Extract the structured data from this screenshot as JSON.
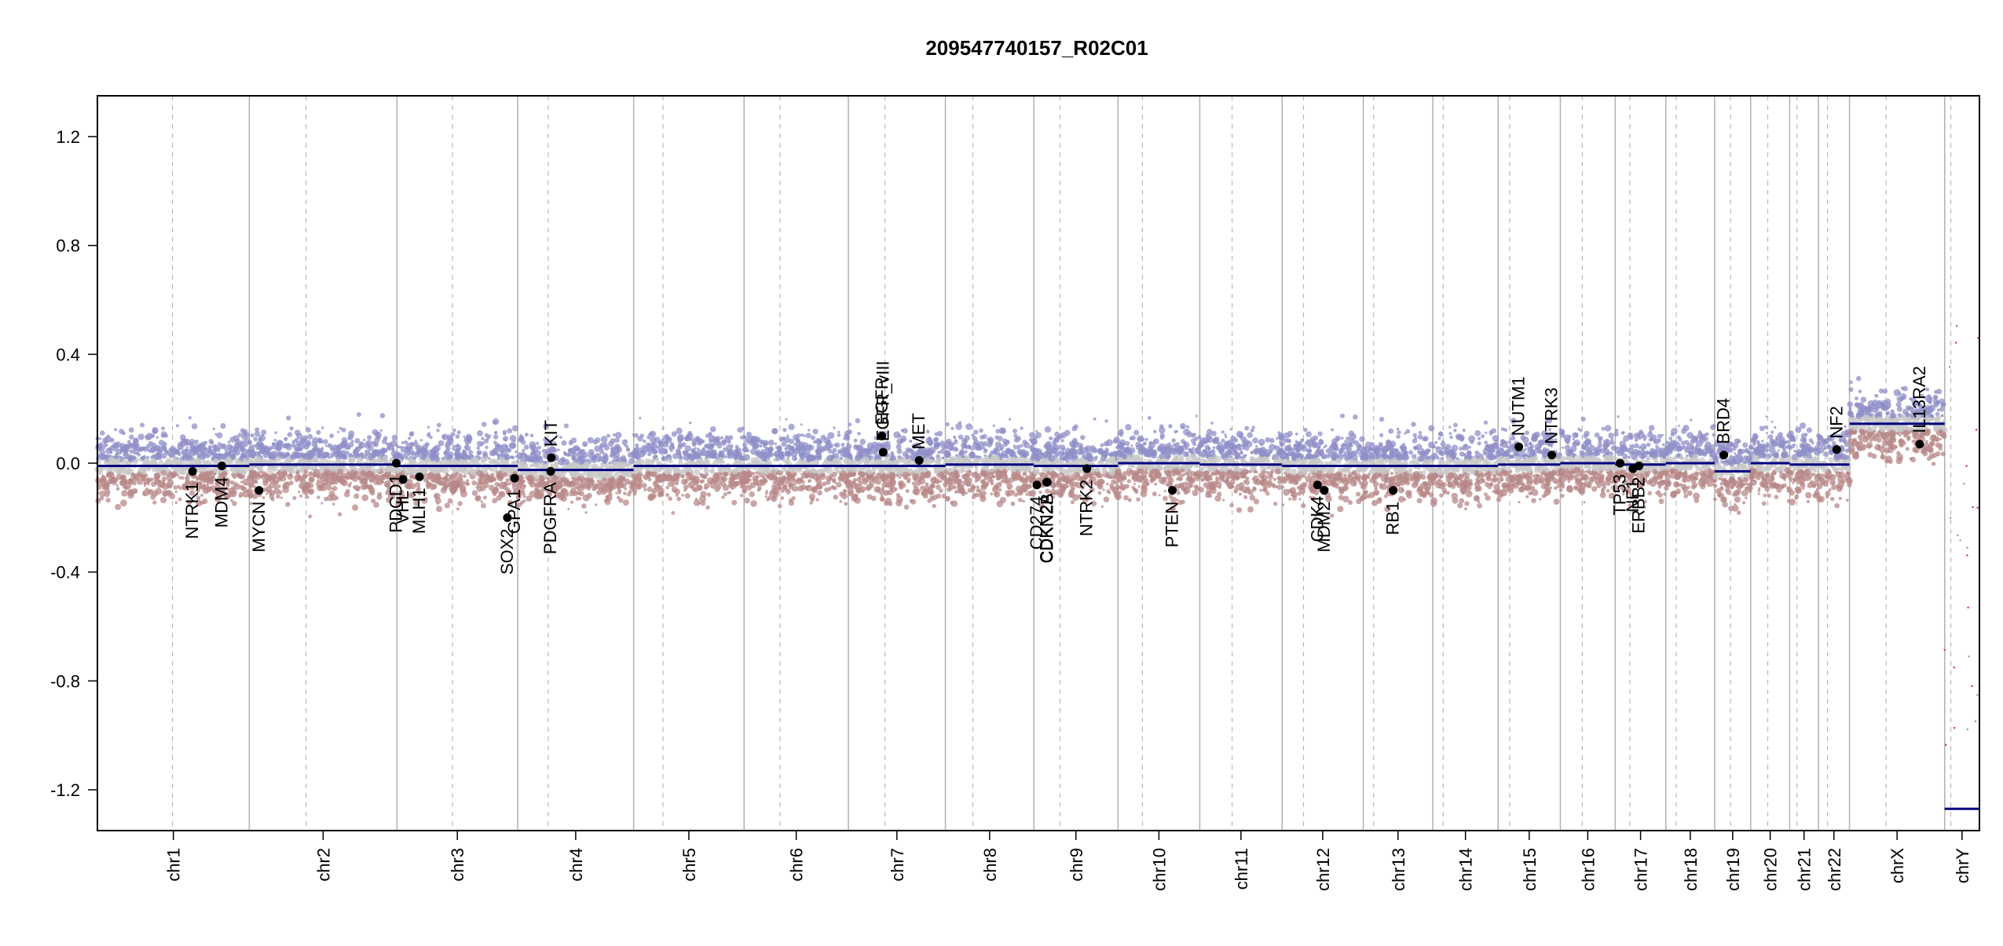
{
  "chart_data": {
    "type": "scatter",
    "title": "209547740157_R02C01",
    "xlabel": "",
    "ylabel": "",
    "ylim": [
      -1.35,
      1.35
    ],
    "y_ticks": [
      1.2,
      0.8,
      0.4,
      0.0,
      -0.4,
      -0.8,
      -1.2
    ],
    "y_tick_labels": [
      "1.2",
      "0.8",
      "0.4",
      "0.0",
      "-0.4",
      "-0.8",
      "-1.2"
    ],
    "chromosomes": [
      {
        "name": "chr1",
        "length": 249,
        "centromere": 123
      },
      {
        "name": "chr2",
        "length": 242,
        "centromere": 93
      },
      {
        "name": "chr3",
        "length": 198,
        "centromere": 91
      },
      {
        "name": "chr4",
        "length": 190,
        "centromere": 50
      },
      {
        "name": "chr5",
        "length": 181,
        "centromere": 48
      },
      {
        "name": "chr6",
        "length": 171,
        "centromere": 59
      },
      {
        "name": "chr7",
        "length": 159,
        "centromere": 60
      },
      {
        "name": "chr8",
        "length": 145,
        "centromere": 45
      },
      {
        "name": "chr9",
        "length": 138,
        "centromere": 43
      },
      {
        "name": "chr10",
        "length": 134,
        "centromere": 40
      },
      {
        "name": "chr11",
        "length": 135,
        "centromere": 53
      },
      {
        "name": "chr12",
        "length": 133,
        "centromere": 35
      },
      {
        "name": "chr13",
        "length": 114,
        "centromere": 17
      },
      {
        "name": "chr14",
        "length": 107,
        "centromere": 17
      },
      {
        "name": "chr15",
        "length": 102,
        "centromere": 19
      },
      {
        "name": "chr16",
        "length": 90,
        "centromere": 36
      },
      {
        "name": "chr17",
        "length": 83,
        "centromere": 24
      },
      {
        "name": "chr18",
        "length": 80,
        "centromere": 17
      },
      {
        "name": "chr19",
        "length": 59,
        "centromere": 26
      },
      {
        "name": "chr20",
        "length": 64,
        "centromere": 28
      },
      {
        "name": "chr21",
        "length": 47,
        "centromere": 12
      },
      {
        "name": "chr22",
        "length": 51,
        "centromere": 15
      },
      {
        "name": "chrX",
        "length": 156,
        "centromere": 60
      },
      {
        "name": "chrY",
        "length": 57,
        "centromere": 10
      }
    ],
    "segments": [
      {
        "chr": "chr1",
        "start": 0,
        "end": 249,
        "value": -0.01
      },
      {
        "chr": "chr2",
        "start": 0,
        "end": 242,
        "value": -0.005
      },
      {
        "chr": "chr3",
        "start": 0,
        "end": 198,
        "value": -0.01
      },
      {
        "chr": "chr4",
        "start": 0,
        "end": 190,
        "value": -0.025
      },
      {
        "chr": "chr5",
        "start": 0,
        "end": 181,
        "value": -0.01
      },
      {
        "chr": "chr6",
        "start": 0,
        "end": 171,
        "value": -0.01
      },
      {
        "chr": "chr7",
        "start": 0,
        "end": 159,
        "value": -0.01
      },
      {
        "chr": "chr8",
        "start": 0,
        "end": 145,
        "value": -0.005
      },
      {
        "chr": "chr9",
        "start": 0,
        "end": 138,
        "value": -0.01
      },
      {
        "chr": "chr10",
        "start": 0,
        "end": 134,
        "value": 0.0
      },
      {
        "chr": "chr11",
        "start": 0,
        "end": 135,
        "value": -0.005
      },
      {
        "chr": "chr12",
        "start": 0,
        "end": 133,
        "value": -0.01
      },
      {
        "chr": "chr13",
        "start": 0,
        "end": 114,
        "value": -0.01
      },
      {
        "chr": "chr14",
        "start": 0,
        "end": 107,
        "value": -0.01
      },
      {
        "chr": "chr15",
        "start": 0,
        "end": 102,
        "value": -0.005
      },
      {
        "chr": "chr16",
        "start": 0,
        "end": 90,
        "value": 0.0
      },
      {
        "chr": "chr17",
        "start": 0,
        "end": 83,
        "value": -0.005
      },
      {
        "chr": "chr18",
        "start": 0,
        "end": 80,
        "value": 0.0
      },
      {
        "chr": "chr19",
        "start": 0,
        "end": 59,
        "value": -0.03
      },
      {
        "chr": "chr20",
        "start": 0,
        "end": 64,
        "value": 0.0
      },
      {
        "chr": "chr21",
        "start": 0,
        "end": 47,
        "value": -0.005
      },
      {
        "chr": "chr22",
        "start": 0,
        "end": 51,
        "value": -0.005
      },
      {
        "chr": "chrX",
        "start": 0,
        "end": 156,
        "value": 0.145
      },
      {
        "chr": "chrY",
        "start": 0,
        "end": 57,
        "value": -1.27
      }
    ],
    "genes": [
      {
        "name": "NTRK1",
        "chr": "chr1",
        "pos": 156,
        "value": -0.03
      },
      {
        "name": "MDM4",
        "chr": "chr1",
        "pos": 204,
        "value": -0.01
      },
      {
        "name": "MYCN",
        "chr": "chr2",
        "pos": 16,
        "value": -0.1
      },
      {
        "name": "PDCD1",
        "chr": "chr2",
        "pos": 241,
        "value": 0.0
      },
      {
        "name": "VHL",
        "chr": "chr3",
        "pos": 10,
        "value": -0.06
      },
      {
        "name": "MLH1",
        "chr": "chr3",
        "pos": 37,
        "value": -0.05
      },
      {
        "name": "SOX2",
        "chr": "chr3",
        "pos": 181,
        "value": -0.2
      },
      {
        "name": "GPA1",
        "chr": "chr3",
        "pos": 193,
        "value": -0.055
      },
      {
        "name": "KIT",
        "chr": "chr4",
        "pos": 55,
        "value": 0.02
      },
      {
        "name": "PDGFRA",
        "chr": "chr4",
        "pos": 54,
        "value": -0.03
      },
      {
        "name": "EGFR",
        "chr": "chr7",
        "pos": 55,
        "value": 0.1
      },
      {
        "name": "EGFR_vIII",
        "chr": "chr7",
        "pos": 57,
        "value": 0.04
      },
      {
        "name": "MET",
        "chr": "chr7",
        "pos": 116,
        "value": 0.01
      },
      {
        "name": "CD274",
        "chr": "chr9",
        "pos": 5,
        "value": -0.08
      },
      {
        "name": "CDKN2A",
        "chr": "chr9",
        "pos": 21,
        "value": -0.07
      },
      {
        "name": "CDKN2B",
        "chr": "chr9",
        "pos": 22,
        "value": -0.07
      },
      {
        "name": "NTRK2",
        "chr": "chr9",
        "pos": 87,
        "value": -0.02
      },
      {
        "name": "PTEN",
        "chr": "chr10",
        "pos": 89,
        "value": -0.1
      },
      {
        "name": "CDK4",
        "chr": "chr12",
        "pos": 58,
        "value": -0.08
      },
      {
        "name": "MDM2",
        "chr": "chr12",
        "pos": 69,
        "value": -0.1
      },
      {
        "name": "RB1",
        "chr": "chr13",
        "pos": 49,
        "value": -0.1
      },
      {
        "name": "NUTM1",
        "chr": "chr15",
        "pos": 34,
        "value": 0.06
      },
      {
        "name": "NTRK3",
        "chr": "chr15",
        "pos": 88,
        "value": 0.03
      },
      {
        "name": "TP53",
        "chr": "chr17",
        "pos": 8,
        "value": 0.0
      },
      {
        "name": "NF1",
        "chr": "chr17",
        "pos": 29,
        "value": -0.02
      },
      {
        "name": "ERBB2",
        "chr": "chr17",
        "pos": 39,
        "value": -0.01
      },
      {
        "name": "BRD4",
        "chr": "chr19",
        "pos": 15,
        "value": 0.03
      },
      {
        "name": "NF2",
        "chr": "chr22",
        "pos": 30,
        "value": 0.05
      },
      {
        "name": "IL13RA2",
        "chr": "chrX",
        "pos": 115,
        "value": 0.07
      }
    ],
    "grid": true,
    "point_colors": {
      "high": "#8f8fc8",
      "mid": "#c8c8c8",
      "low": "#b88888",
      "segment": "#000080",
      "gene": "#000000",
      "outlier_low": "#c0304a"
    }
  }
}
